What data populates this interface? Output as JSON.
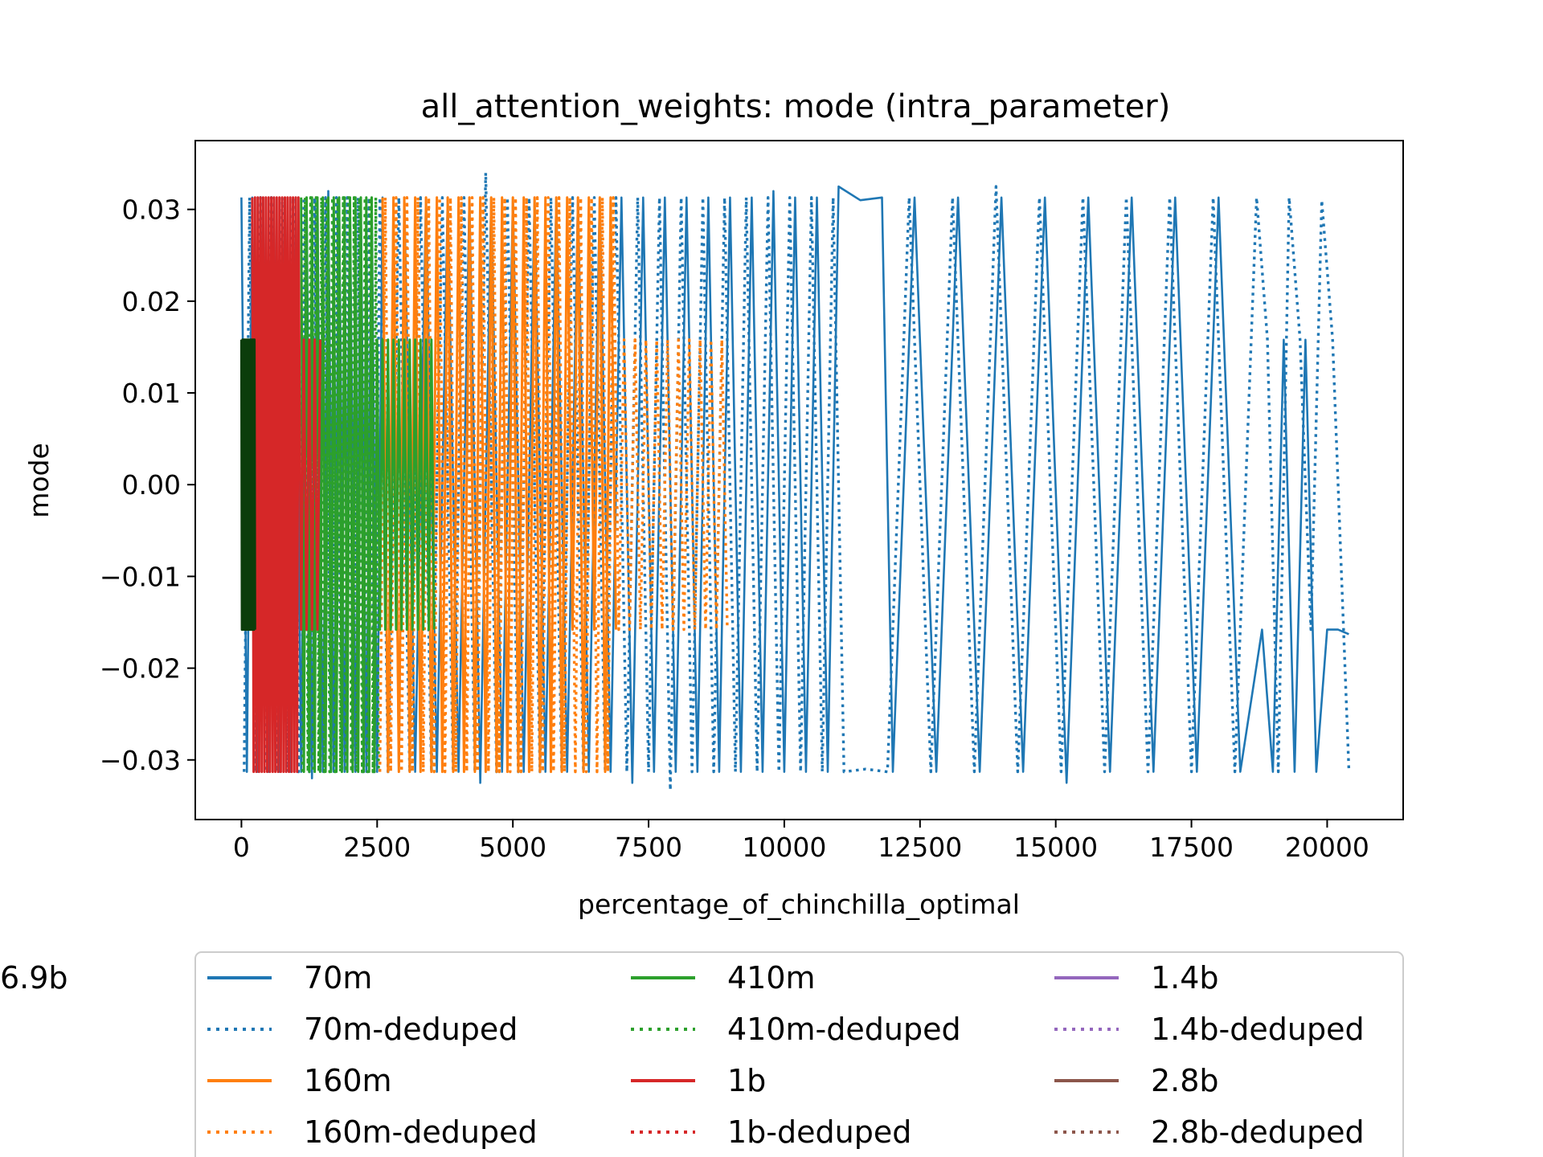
{
  "chart_data": {
    "type": "line",
    "title": "all_attention_weights: mode (intra_parameter)",
    "xlabel": "percentage_of_chinchilla_optimal",
    "ylabel": "mode",
    "xlim": [
      -850,
      21400
    ],
    "ylim": [
      -0.0365,
      0.0375
    ],
    "xticks": [
      0,
      2500,
      5000,
      7500,
      10000,
      12500,
      15000,
      17500,
      20000
    ],
    "xtick_labels": [
      "0",
      "2500",
      "5000",
      "7500",
      "10000",
      "12500",
      "15000",
      "17500",
      "20000"
    ],
    "yticks": [
      -0.03,
      -0.02,
      -0.01,
      0.0,
      0.01,
      0.02,
      0.03
    ],
    "ytick_labels": [
      "−0.03",
      "−0.02",
      "−0.01",
      "0.00",
      "0.01",
      "0.02",
      "0.03"
    ],
    "grid": false,
    "legend_placement": "below",
    "series": [
      {
        "name": "70m",
        "color": "#1f77b4",
        "dash": "solid",
        "width": 2.6,
        "x": [
          0,
          100,
          200,
          300,
          400,
          500,
          600,
          700,
          800,
          900,
          1000,
          1100,
          1200,
          1300,
          1400,
          1500,
          1600,
          1700,
          1800,
          1900,
          2000,
          2100,
          2200,
          2300,
          2400,
          2500,
          2600,
          2700,
          2800,
          2900,
          3000,
          3200,
          3400,
          3600,
          3800,
          4000,
          4200,
          4400,
          4600,
          4800,
          5000,
          5200,
          5400,
          5600,
          5800,
          6000,
          6200,
          6400,
          6600,
          6800,
          7000,
          7200,
          7400,
          7600,
          7800,
          8000,
          8200,
          8400,
          8600,
          8800,
          9000,
          9200,
          9400,
          9600,
          9800,
          10000,
          10200,
          10400,
          10600,
          10800,
          11000,
          11400,
          11800,
          12000,
          12400,
          12800,
          13200,
          13600,
          14000,
          14400,
          14800,
          15200,
          15600,
          16000,
          16400,
          16800,
          17200,
          17600,
          18000,
          18400,
          18800,
          19000,
          19200,
          19400,
          19600,
          19800,
          20000,
          20200,
          20400
        ],
        "y": [
          0.0313,
          -0.0313,
          0.0313,
          -0.0313,
          0.0313,
          -0.0313,
          0.0313,
          -0.0313,
          0.0313,
          -0.0313,
          0.0313,
          -0.0313,
          0.0313,
          -0.032,
          0.0313,
          -0.0313,
          0.032,
          -0.0313,
          0.0313,
          -0.0313,
          0.0313,
          -0.0313,
          0.0313,
          -0.0313,
          0.0313,
          -0.0313,
          0.0313,
          -0.031,
          0.0313,
          -0.0313,
          0.0313,
          -0.0313,
          0.0313,
          -0.0313,
          0.0313,
          -0.0313,
          0.0313,
          -0.0325,
          0.0313,
          -0.0313,
          0.0313,
          -0.0313,
          0.0313,
          -0.0313,
          0.0313,
          -0.0313,
          0.0313,
          -0.0313,
          0.0313,
          -0.0313,
          0.0313,
          -0.0325,
          0.0313,
          -0.0313,
          0.0313,
          -0.0313,
          0.0313,
          -0.0313,
          0.0313,
          -0.0313,
          0.0313,
          -0.0313,
          0.0313,
          -0.0313,
          0.032,
          -0.0313,
          0.0313,
          -0.0313,
          0.0313,
          -0.0313,
          0.0325,
          0.031,
          0.0313,
          -0.0313,
          0.0313,
          -0.0313,
          0.0313,
          -0.0313,
          0.0313,
          -0.0313,
          0.0313,
          -0.0325,
          0.0313,
          -0.0313,
          0.0313,
          -0.0313,
          0.0313,
          -0.0313,
          0.0313,
          -0.0313,
          -0.0158,
          -0.0313,
          0.0158,
          -0.0313,
          0.0158,
          -0.0313,
          -0.0158,
          -0.0158,
          -0.0163
        ]
      },
      {
        "name": "70m-deduped",
        "color": "#1f77b4",
        "dash": "dotted",
        "width": 3.4,
        "x": [
          50,
          150,
          250,
          350,
          450,
          550,
          650,
          750,
          850,
          950,
          1050,
          1150,
          1250,
          1350,
          1450,
          1550,
          1650,
          1750,
          1850,
          1950,
          2050,
          2150,
          2250,
          2350,
          2450,
          2550,
          2700,
          2900,
          3100,
          3300,
          3500,
          3700,
          3900,
          4100,
          4300,
          4500,
          4700,
          4900,
          5100,
          5300,
          5500,
          5700,
          5900,
          6100,
          6300,
          6500,
          6700,
          6900,
          7100,
          7300,
          7500,
          7700,
          7900,
          8100,
          8300,
          8500,
          8700,
          8900,
          9100,
          9300,
          9500,
          9700,
          9900,
          10100,
          10300,
          10500,
          10700,
          10900,
          11100,
          11500,
          11900,
          12300,
          12700,
          13100,
          13500,
          13900,
          14300,
          14700,
          15100,
          15500,
          15900,
          16300,
          16700,
          17100,
          17500,
          17900,
          18300,
          18700,
          18900,
          19100,
          19300,
          19500,
          19700,
          19900,
          20100,
          20400
        ],
        "y": [
          -0.0313,
          0.0313,
          -0.0313,
          0.0313,
          -0.0313,
          0.0313,
          -0.0313,
          0.0313,
          -0.0313,
          0.0313,
          -0.0313,
          0.0313,
          -0.0313,
          0.0313,
          -0.0313,
          0.0313,
          -0.0313,
          0.0313,
          -0.0313,
          0.0313,
          -0.0313,
          0.0313,
          -0.0313,
          0.0313,
          -0.0313,
          0.0313,
          -0.0313,
          0.0313,
          -0.0313,
          0.0313,
          -0.0313,
          0.0313,
          -0.0313,
          0.0313,
          -0.0313,
          0.034,
          -0.0313,
          0.0313,
          -0.0313,
          0.0313,
          -0.0313,
          0.0313,
          -0.0313,
          0.0313,
          -0.0313,
          0.0313,
          -0.0313,
          0.0313,
          -0.0313,
          0.0313,
          -0.0313,
          0.0313,
          -0.0333,
          0.0313,
          -0.0313,
          0.0313,
          -0.0313,
          0.0313,
          -0.0313,
          0.0313,
          -0.0313,
          0.0313,
          -0.0313,
          0.0313,
          -0.0313,
          0.0313,
          -0.0313,
          0.0313,
          -0.0313,
          -0.031,
          -0.0313,
          0.0313,
          -0.0313,
          0.0313,
          -0.0313,
          0.0325,
          -0.0313,
          0.0313,
          -0.0313,
          0.0313,
          -0.0313,
          0.0313,
          -0.0313,
          0.0313,
          -0.0313,
          0.0313,
          -0.0313,
          0.0313,
          0.0158,
          -0.0313,
          0.0313,
          0.0158,
          -0.0158,
          0.031,
          0.0158,
          -0.031
        ]
      },
      {
        "name": "160m",
        "color": "#ff7f0e",
        "dash": "solid",
        "width": 3,
        "x": [
          2600,
          2700,
          2800,
          2900,
          3000,
          3100,
          3200,
          3300,
          3400,
          3500,
          3600,
          3700,
          3800,
          3900,
          4000,
          4100,
          4200,
          4300,
          4400,
          4500,
          4600,
          4700,
          4800,
          4900,
          5000,
          5100,
          5200,
          5300,
          5400,
          5500,
          5600,
          5700,
          5800,
          5900,
          6000,
          6100,
          6200,
          6300,
          6400,
          6500,
          6600,
          6700,
          6800,
          6900
        ],
        "y": [
          0.0313,
          -0.0313,
          0.0313,
          -0.0313,
          0.0313,
          -0.0313,
          0.0313,
          -0.0313,
          0.0313,
          -0.0313,
          0.0313,
          -0.0313,
          0.0313,
          -0.0313,
          0.0313,
          -0.0313,
          0.0313,
          -0.0313,
          0.0313,
          -0.0313,
          0.0313,
          -0.0313,
          0.0313,
          -0.0313,
          0.0313,
          -0.0313,
          0.0313,
          -0.0313,
          0.0313,
          -0.0313,
          0.0313,
          -0.0313,
          0.0313,
          -0.0313,
          0.0313,
          -0.0158,
          0.0313,
          -0.0313,
          0.0313,
          -0.0158,
          0.0313,
          -0.0313,
          0.0313,
          -0.0158
        ]
      },
      {
        "name": "160m-deduped",
        "color": "#ff7f0e",
        "dash": "dotted",
        "width": 3.4,
        "x": [
          2550,
          2650,
          2750,
          2850,
          2950,
          3050,
          3150,
          3250,
          3350,
          3450,
          3550,
          3650,
          3750,
          3850,
          3950,
          4050,
          4150,
          4250,
          4350,
          4450,
          4550,
          4650,
          4750,
          4850,
          4950,
          5050,
          5150,
          5250,
          5350,
          5450,
          5550,
          5650,
          5750,
          5850,
          5950,
          6050,
          6150,
          6250,
          6350,
          6450,
          6550,
          6650,
          6750,
          6850,
          6950,
          7050,
          7150,
          7250,
          7350,
          7450,
          7550,
          7650,
          7750,
          7850,
          7950,
          8050,
          8150,
          8250,
          8350,
          8450,
          8550,
          8650,
          8750,
          8850,
          8950
        ],
        "y": [
          -0.0313,
          0.0313,
          -0.0313,
          0.0313,
          -0.0313,
          0.0313,
          -0.0313,
          0.0313,
          -0.0313,
          0.0313,
          -0.0313,
          0.0313,
          -0.0313,
          0.0313,
          -0.0313,
          0.0313,
          -0.0313,
          0.0313,
          -0.0313,
          0.0313,
          -0.0313,
          0.0313,
          -0.0313,
          0.0313,
          -0.0313,
          0.0313,
          -0.0313,
          0.0313,
          -0.0313,
          0.0313,
          -0.0313,
          0.0313,
          -0.0313,
          0.0313,
          -0.0313,
          0.0313,
          -0.0313,
          0.0313,
          -0.0313,
          0.0313,
          -0.0313,
          0.0313,
          -0.0313,
          0.0313,
          -0.0158,
          0.0158,
          -0.0158,
          0.0158,
          -0.0158,
          0.0158,
          -0.0158,
          0.0158,
          -0.0158,
          0.0158,
          -0.0158,
          0.0158,
          -0.0158,
          0.0158,
          -0.0158,
          0.0158,
          -0.0158,
          0.0158,
          -0.0158,
          0.0158,
          -0.0158
        ]
      },
      {
        "name": "410m",
        "color": "#2ca02c",
        "dash": "solid",
        "width": 3,
        "x": [
          1100,
          1150,
          1200,
          1250,
          1300,
          1350,
          1400,
          1450,
          1500,
          1550,
          1600,
          1650,
          1700,
          1750,
          1800,
          1850,
          1900,
          1950,
          2000,
          2050,
          2100,
          2150,
          2200,
          2250,
          2300,
          2350,
          2400,
          2450,
          2500,
          2550,
          2600,
          2650,
          2700,
          2750,
          2800,
          2850,
          2900,
          2950,
          3000,
          3050,
          3100,
          3150,
          3200,
          3250,
          3300,
          3350,
          3400,
          3450,
          3500,
          3550
        ],
        "y": [
          0.0313,
          -0.0313,
          0.0313,
          -0.0313,
          0.0313,
          -0.0313,
          0.0313,
          -0.0313,
          0.0313,
          -0.0313,
          0.0313,
          -0.0313,
          0.0313,
          -0.0313,
          0.0313,
          -0.0313,
          0.0313,
          -0.0313,
          0.0313,
          -0.0313,
          0.0313,
          -0.0313,
          0.0313,
          -0.0313,
          0.0313,
          -0.0313,
          0.0313,
          -0.0313,
          0.0158,
          -0.0158,
          0.0158,
          -0.0158,
          0.0158,
          -0.0158,
          0.0158,
          -0.0158,
          0.0158,
          -0.0158,
          0.0158,
          -0.0158,
          0.0158,
          -0.0158,
          0.0158,
          -0.0158,
          0.0158,
          -0.0158,
          0.0158,
          -0.0158,
          0.0158,
          -0.0158
        ]
      },
      {
        "name": "410m-deduped",
        "color": "#2ca02c",
        "dash": "dotted",
        "width": 3.4,
        "x": [
          1125,
          1175,
          1225,
          1275,
          1325,
          1375,
          1425,
          1475,
          1525,
          1575,
          1625,
          1675,
          1725,
          1775,
          1825,
          1875,
          1925,
          1975,
          2025,
          2075,
          2125,
          2175,
          2225,
          2275,
          2325,
          2375,
          2425,
          2475,
          2525
        ],
        "y": [
          -0.0313,
          0.0313,
          -0.0313,
          0.0313,
          -0.0313,
          0.0313,
          -0.0313,
          0.0313,
          -0.0313,
          0.0313,
          -0.0313,
          0.0313,
          -0.0313,
          0.0313,
          -0.0313,
          0.0313,
          -0.0313,
          0.0313,
          -0.0313,
          0.0313,
          -0.0313,
          0.0313,
          -0.0313,
          0.0313,
          -0.0313,
          0.0313,
          -0.0313,
          0.0313,
          -0.0313
        ]
      },
      {
        "name": "1b",
        "color": "#d62728",
        "dash": "solid",
        "width": 3,
        "x": [
          200,
          225,
          250,
          275,
          300,
          325,
          350,
          375,
          400,
          425,
          450,
          475,
          500,
          525,
          550,
          575,
          600,
          625,
          650,
          675,
          700,
          725,
          750,
          775,
          800,
          825,
          850,
          875,
          900,
          925,
          950,
          975,
          1000,
          1025,
          1050,
          1100,
          1150,
          1200,
          1250,
          1300,
          1350,
          1400,
          1450
        ],
        "y": [
          0.0313,
          -0.0313,
          0.0313,
          -0.0313,
          0.0313,
          -0.0313,
          0.0313,
          -0.0313,
          0.0313,
          -0.0313,
          0.0313,
          -0.0313,
          0.0313,
          -0.0313,
          0.0313,
          -0.0313,
          0.0313,
          -0.0313,
          0.0313,
          -0.0313,
          0.0313,
          -0.0313,
          0.0313,
          -0.0313,
          0.0313,
          -0.0313,
          0.0313,
          -0.0313,
          0.0313,
          -0.0313,
          0.0313,
          -0.0313,
          0.0313,
          -0.0313,
          0.0313,
          -0.0158,
          0.0158,
          -0.0158,
          0.0158,
          -0.0158,
          0.0158,
          -0.0158,
          0.0158
        ]
      },
      {
        "name": "1b-deduped",
        "color": "#d62728",
        "dash": "dotted",
        "width": 3.4,
        "x": [],
        "y": []
      },
      {
        "name": "1.4b",
        "color": "#9467bd",
        "dash": "solid",
        "width": 3,
        "x": [],
        "y": []
      },
      {
        "name": "1.4b-deduped",
        "color": "#9467bd",
        "dash": "dotted",
        "width": 3.4,
        "x": [],
        "y": []
      },
      {
        "name": "2.8b",
        "color": "#8c564b",
        "dash": "solid",
        "width": 3,
        "x": [],
        "y": []
      },
      {
        "name": "2.8b-deduped",
        "color": "#8c564b",
        "dash": "dotted",
        "width": 3.4,
        "x": [],
        "y": []
      },
      {
        "name": "6.9b",
        "color": "#0b3d0b",
        "dash": "solid",
        "width": 3,
        "x": [
          0,
          10,
          20,
          30,
          40,
          50,
          60,
          70,
          80,
          90,
          100,
          110,
          120,
          130,
          140,
          150,
          160,
          170,
          180,
          190,
          200,
          210,
          220,
          230,
          240,
          250
        ],
        "y": [
          0.0158,
          -0.0158,
          0.0158,
          -0.0158,
          0.0158,
          -0.0158,
          0.0158,
          -0.0158,
          0.0158,
          -0.0158,
          0.0158,
          -0.0158,
          0.0158,
          -0.0158,
          0.0158,
          -0.0158,
          0.0158,
          -0.0158,
          0.0158,
          -0.0158,
          0.0158,
          -0.0158,
          0.0158,
          -0.0158,
          0.0158,
          -0.0158
        ]
      }
    ]
  }
}
